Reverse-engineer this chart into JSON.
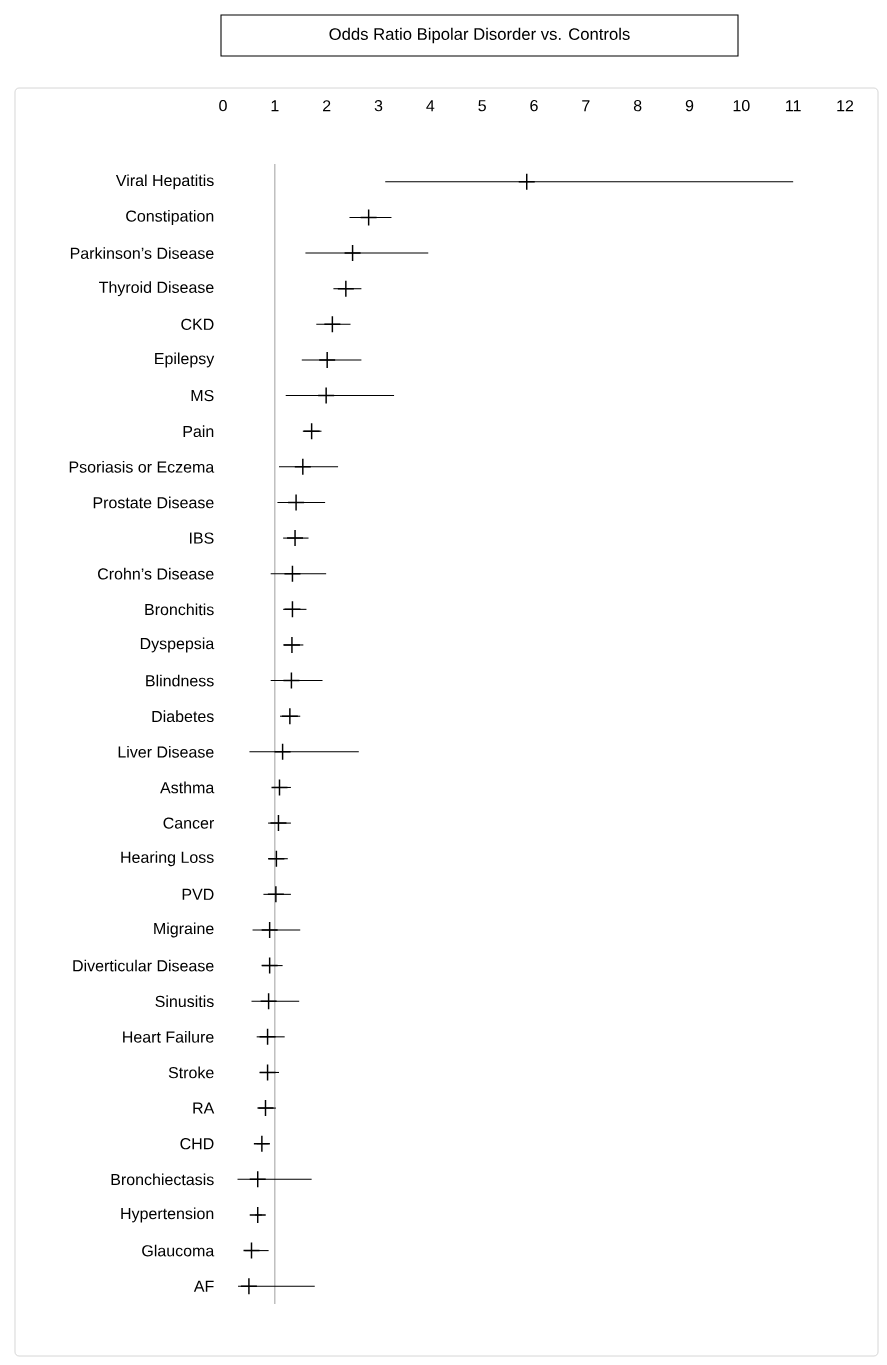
{
  "chart_data": {
    "type": "scatter",
    "orientation": "horizontal",
    "title": "Odds Ratio Bipolar Disorder vs. Controls",
    "categories": [
      "Viral Hepatitis",
      "Constipation",
      "Parkinson’s Disease",
      "Thyroid Disease",
      "CKD",
      "Epilepsy",
      "MS",
      "Pain",
      "Psoriasis or Eczema",
      "Prostate Disease",
      "IBS",
      "Crohn’s Disease",
      "Bronchitis",
      "Dyspepsia",
      "Blindness",
      "Diabetes",
      "Liver Disease",
      "Asthma",
      "Cancer",
      "Hearing Loss",
      "PVD",
      "Migraine",
      "Diverticular Disease",
      "Sinusitis",
      "Heart Failure",
      "Stroke",
      "RA",
      "CHD",
      "Bronchiectasis",
      "Hypertension",
      "Glaucoma",
      "AF"
    ],
    "values": [
      5.86,
      2.81,
      2.5,
      2.37,
      2.11,
      2.01,
      1.99,
      1.71,
      1.54,
      1.41,
      1.39,
      1.34,
      1.34,
      1.33,
      1.32,
      1.29,
      1.15,
      1.09,
      1.07,
      1.03,
      1.02,
      0.9,
      0.9,
      0.88,
      0.86,
      0.86,
      0.82,
      0.75,
      0.67,
      0.67,
      0.55,
      0.5
    ],
    "errors": [
      [
        3.13,
        11.0
      ],
      [
        2.44,
        3.25
      ],
      [
        1.59,
        3.96
      ],
      [
        2.13,
        2.67
      ],
      [
        1.8,
        2.46
      ],
      [
        1.52,
        2.67
      ],
      [
        1.21,
        3.3
      ],
      [
        1.54,
        1.9
      ],
      [
        1.08,
        2.22
      ],
      [
        1.05,
        1.97
      ],
      [
        1.16,
        1.65
      ],
      [
        0.92,
        1.99
      ],
      [
        1.16,
        1.61
      ],
      [
        1.16,
        1.55
      ],
      [
        0.92,
        1.92
      ],
      [
        1.1,
        1.49
      ],
      [
        0.51,
        2.62
      ],
      [
        0.96,
        1.31
      ],
      [
        0.87,
        1.31
      ],
      [
        0.87,
        1.25
      ],
      [
        0.78,
        1.31
      ],
      [
        0.57,
        1.49
      ],
      [
        0.75,
        1.15
      ],
      [
        0.55,
        1.47
      ],
      [
        0.65,
        1.19
      ],
      [
        0.71,
        1.08
      ],
      [
        0.69,
        1.02
      ],
      [
        0.65,
        0.88
      ],
      [
        0.28,
        1.71
      ],
      [
        0.62,
        0.75
      ],
      [
        0.42,
        0.88
      ],
      [
        0.29,
        1.77
      ]
    ],
    "color": "#000000",
    "marker": "cross",
    "xlim": [
      0,
      12
    ],
    "xticks": [
      0,
      1,
      2,
      3,
      4,
      5,
      6,
      7,
      8,
      9,
      10,
      11,
      12
    ],
    "ref_lines": [
      {
        "axis": "x",
        "value": 1,
        "color": "#a6a6a6"
      }
    ]
  }
}
